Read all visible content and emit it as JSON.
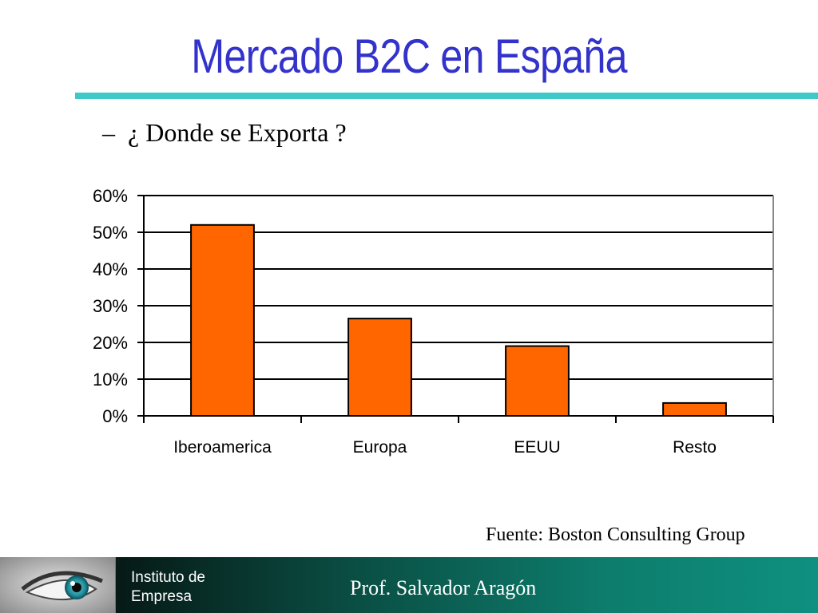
{
  "slide": {
    "title": "Mercado B2C en España",
    "bullet_dash": "–",
    "subtitle": "¿ Donde se Exporta ?",
    "source": "Fuente: Boston Consulting Group"
  },
  "footer": {
    "institute_line1": "Instituto de",
    "institute_line2": "Empresa",
    "professor": "Prof.  Salvador Aragón"
  },
  "colors": {
    "title": "#3333cc",
    "rule": "#3ec8c8",
    "bar": "#ff6600",
    "footer_dark": "#000000",
    "footer_light": "#0f9080"
  },
  "chart_data": {
    "type": "bar",
    "categories": [
      "Iberoamerica",
      "Europa",
      "EEUU",
      "Resto"
    ],
    "values": [
      0.52,
      0.265,
      0.19,
      0.035
    ],
    "ylim": [
      0,
      0.6
    ],
    "yticks": [
      0,
      0.1,
      0.2,
      0.3,
      0.4,
      0.5,
      0.6
    ],
    "ytick_labels": [
      "0%",
      "10%",
      "20%",
      "30%",
      "40%",
      "50%",
      "60%"
    ],
    "grid": true,
    "legend": "none"
  }
}
